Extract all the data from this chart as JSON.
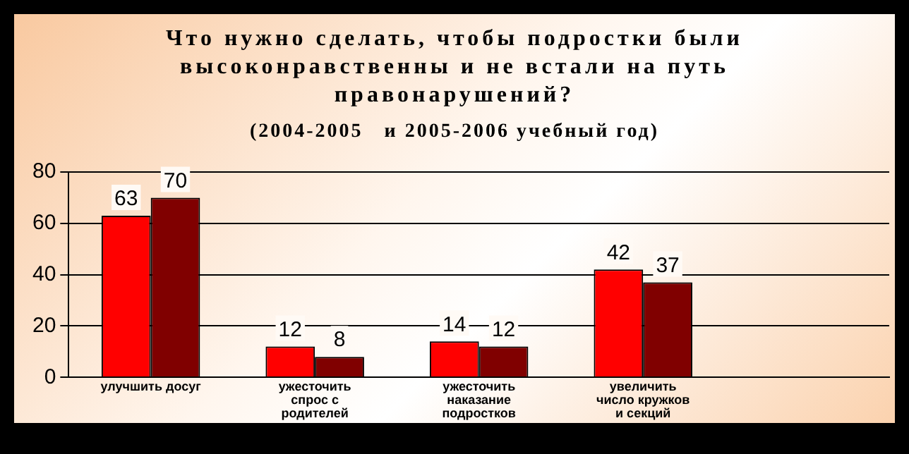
{
  "chart_data": {
    "type": "bar",
    "title": "Что нужно сделать, чтобы подростки были высоконравственны и не встали на путь правонарушений?",
    "subtitle": "(2004-2005   и 2005-2006 учебный год)",
    "categories": [
      "улучшить досуг",
      "ужесточить спрос с родителей",
      "ужесточить наказание подростков",
      "увеличить число кружков и секций",
      null
    ],
    "series": [
      {
        "color": "#ff0000",
        "values": [
          63,
          12,
          14,
          42,
          null
        ]
      },
      {
        "color": "#800000",
        "values": [
          70,
          8,
          12,
          37,
          null
        ]
      }
    ],
    "ylim": [
      0,
      80
    ],
    "yticks": [
      0,
      20,
      40,
      60,
      80
    ],
    "grid": "y",
    "data_labels": true,
    "legend": false
  }
}
